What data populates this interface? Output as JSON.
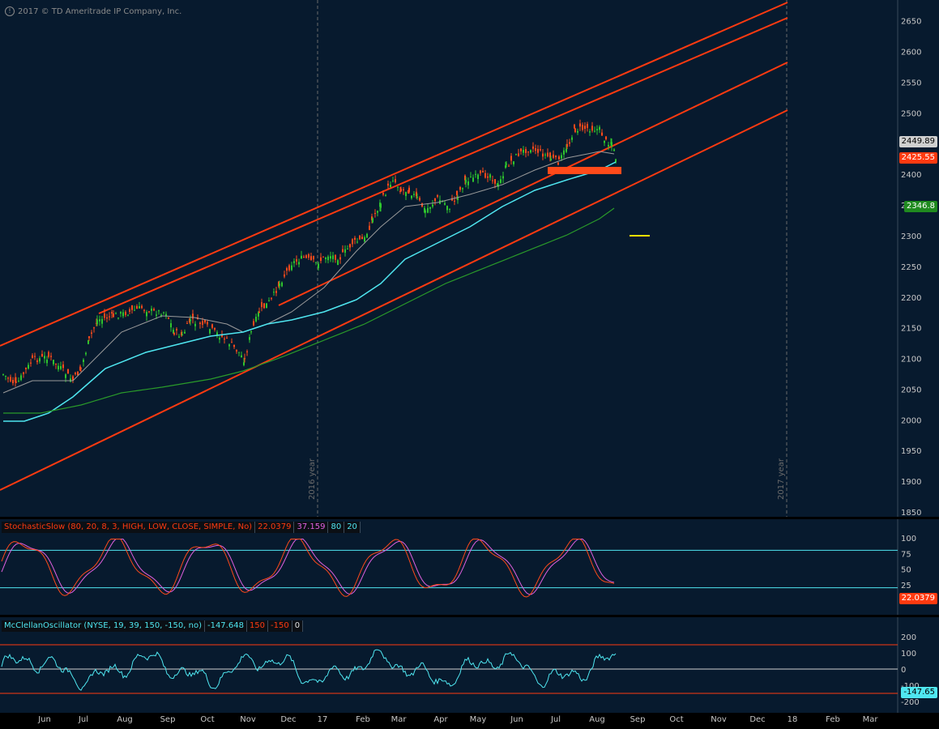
{
  "copyright": "2017 © TD Ameritrade IP Company, Inc.",
  "price_pane": {
    "y_ticks": [
      "2650",
      "2600",
      "2550",
      "2500",
      "2450",
      "2400",
      "2350",
      "2300",
      "2250",
      "2200",
      "2150",
      "2100",
      "2050",
      "2000",
      "1950",
      "1900",
      "1850"
    ],
    "year_markers": [
      "2016 year",
      "2017 year"
    ],
    "tags": {
      "sma_value": "2449.89",
      "last_price": "2425.55",
      "ma_green": "2346.8"
    }
  },
  "stoch_pane": {
    "title": "StochasticSlow (80, 20, 8, 3, HIGH, LOW, CLOSE, SIMPLE, No)",
    "slowk": "22.0379",
    "slowd": "37.159",
    "over_bought": "80",
    "over_sold": "20",
    "y_ticks": [
      "100",
      "75",
      "50",
      "25"
    ],
    "last_tag": "22.0379"
  },
  "mcclellan_pane": {
    "title": "McClellanOscillator (NYSE, 19, 39, 150, -150, no)",
    "value": "-147.648",
    "upper": "150",
    "lower": "-150",
    "zero": "0",
    "y_ticks": [
      "200",
      "100",
      "0",
      "-100",
      "-200"
    ],
    "last_tag": "-147.65"
  },
  "x_axis": [
    "Jun",
    "Jul",
    "Aug",
    "Sep",
    "Oct",
    "Nov",
    "Dec",
    "17",
    "Feb",
    "Mar",
    "Apr",
    "May",
    "Jun",
    "Jul",
    "Aug",
    "Sep",
    "Oct",
    "Nov",
    "Dec",
    "18",
    "Feb",
    "Mar"
  ],
  "colors": {
    "background": "#071a2e",
    "up": "#2ec52e",
    "down": "#ff4a1a",
    "channel": "#ff3a10",
    "cyan": "#4fe6f0",
    "gray_ma": "#9a9a9a",
    "green_ma": "#2a9a2a",
    "stoch_k": "#ff4a1a",
    "stoch_d": "#e060e0"
  },
  "chart_data": {
    "type": "line",
    "title": "",
    "x": [
      "Jun",
      "Jul",
      "Aug",
      "Sep",
      "Oct",
      "Nov",
      "Dec",
      "17",
      "Feb",
      "Mar",
      "Apr",
      "May",
      "Jun",
      "Jul",
      "Aug"
    ],
    "series": [
      {
        "values": [
          2070,
          2170,
          2180,
          2140,
          2140,
          2100,
          2260,
          2270,
          2300,
          2390,
          2360,
          2400,
          2430,
          2450,
          2470
        ]
      }
    ],
    "ylabel": "",
    "ylim": [
      1850,
      2680
    ]
  }
}
